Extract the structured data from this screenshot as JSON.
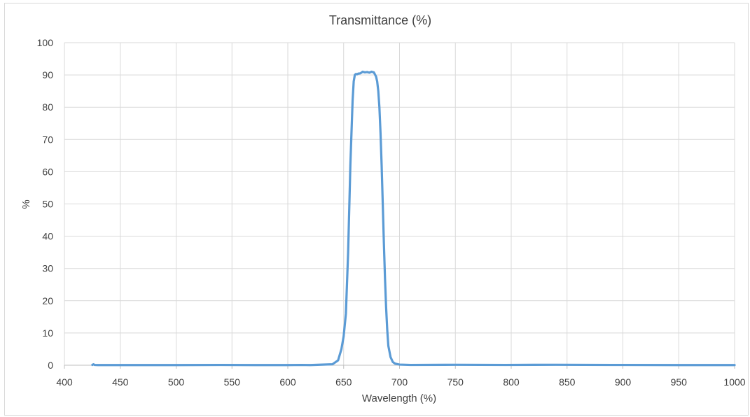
{
  "chart_data": {
    "type": "line",
    "title": "Transmittance (%)",
    "xlabel": "Wavelength (%)",
    "ylabel": "%",
    "xlim": [
      400,
      1000
    ],
    "ylim": [
      0,
      100
    ],
    "x_ticks": [
      "400",
      "450",
      "500",
      "550",
      "600",
      "650",
      "700",
      "750",
      "800",
      "850",
      "900",
      "950",
      "1000"
    ],
    "y_ticks": [
      "0",
      "10",
      "20",
      "30",
      "40",
      "50",
      "60",
      "70",
      "80",
      "90",
      "100"
    ],
    "grid": true,
    "legend": "none",
    "series": [
      {
        "color": "#5b9bd5",
        "x": [
          425,
          426,
          427,
          430,
          450,
          500,
          540,
          570,
          600,
          612,
          620,
          640,
          645,
          648,
          650,
          652,
          654,
          656,
          658,
          659,
          660,
          661,
          662,
          663,
          665,
          667,
          669,
          671,
          673,
          675,
          677,
          679,
          680,
          681,
          682,
          683,
          684,
          685,
          686,
          687,
          688,
          689,
          690,
          692,
          694,
          696,
          700,
          710,
          750,
          795,
          840,
          890,
          950,
          1000
        ],
        "y": [
          0.1,
          0.3,
          0.1,
          0.05,
          0.05,
          0.05,
          0.1,
          0.05,
          0.05,
          0.1,
          0.05,
          0.3,
          1.5,
          5.0,
          9.0,
          16.0,
          35.0,
          62.0,
          82.0,
          88.0,
          90.0,
          90.3,
          90.2,
          90.4,
          90.5,
          91.0,
          90.8,
          90.9,
          90.7,
          91.0,
          90.8,
          89.5,
          88.0,
          85.0,
          80.0,
          72.0,
          62.0,
          50.0,
          38.0,
          27.0,
          18.0,
          11.0,
          6.0,
          2.5,
          1.0,
          0.5,
          0.2,
          0.1,
          0.15,
          0.1,
          0.15,
          0.1,
          0.05,
          0.05
        ]
      }
    ]
  }
}
